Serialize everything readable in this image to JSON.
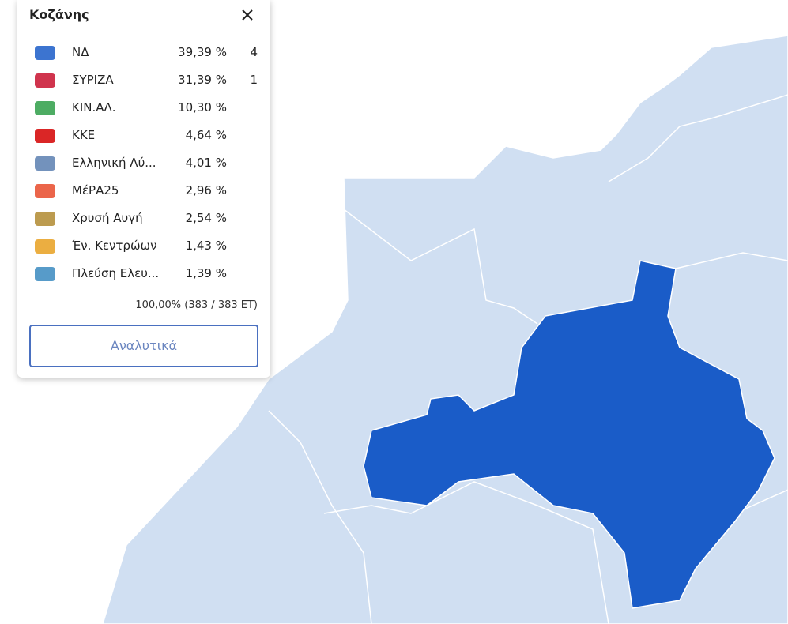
{
  "panel": {
    "title": "Κοζάνης",
    "rows": [
      {
        "party": "ΝΔ",
        "percent": "39,39 %",
        "seats": "4"
      },
      {
        "party": "ΣΥΡΙΖΑ",
        "percent": "31,39 %",
        "seats": "1"
      },
      {
        "party": "ΚΙΝ.ΑΛ.",
        "percent": "10,30 %"
      },
      {
        "party": "ΚΚΕ",
        "percent": "4,64 %"
      },
      {
        "party": "Ελληνική Λύ...",
        "percent": "4,01 %"
      },
      {
        "party": "ΜέΡΑ25",
        "percent": "2,96 %"
      },
      {
        "party": "Χρυσή Αυγή",
        "percent": "2,54 %"
      },
      {
        "party": "Έν. Κεντρώων",
        "percent": "1,43 %"
      },
      {
        "party": "Πλεύση Ελευ...",
        "percent": "1,39 %"
      }
    ],
    "footer": "100,00% (383 / 383 ΕΤ)",
    "button": "Αναλυτικά"
  }
}
